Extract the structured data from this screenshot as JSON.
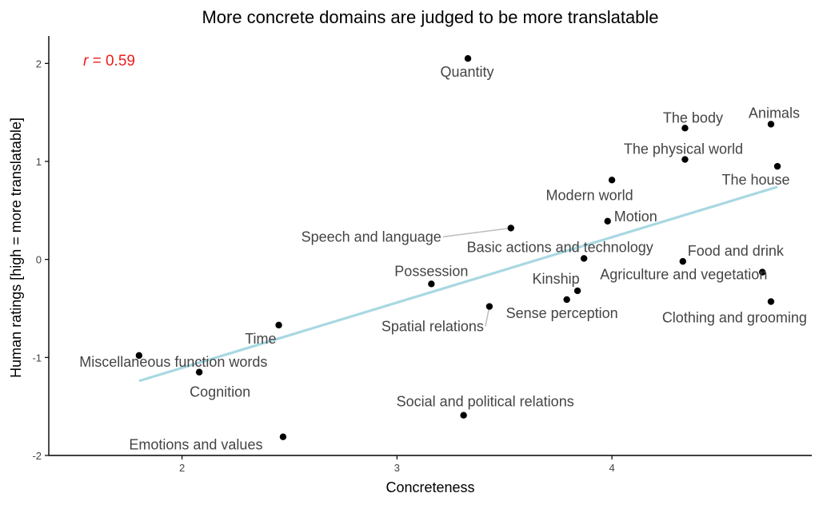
{
  "chart_data": {
    "type": "scatter",
    "title": "More concrete domains are judged to be more translatable",
    "xlabel": "Concreteness",
    "ylabel": "Human ratings [high = more translatable]",
    "xlim": [
      1.38,
      4.93
    ],
    "ylim": [
      -2.0,
      2.28
    ],
    "x_ticks": [
      2,
      3,
      4
    ],
    "y_ticks": [
      -2,
      -1,
      0,
      1,
      2
    ],
    "x_tick_labels": [
      "2",
      "3",
      "4"
    ],
    "y_tick_labels": [
      "-2",
      "-1",
      "0",
      "1",
      "2"
    ],
    "grid": false,
    "legend": "none",
    "annotation": {
      "prefix": "r",
      "text": " = 0.59",
      "color": "#ee1c1c"
    },
    "trend_line": {
      "color": "#a8d8e2",
      "x": [
        1.8,
        4.77
      ],
      "y": [
        -1.24,
        0.74
      ]
    },
    "point_color": "#000000",
    "points": [
      {
        "label": "Quantity",
        "x": 3.33,
        "y": 2.05
      },
      {
        "label": "The body",
        "x": 4.34,
        "y": 1.34
      },
      {
        "label": "Animals",
        "x": 4.74,
        "y": 1.38
      },
      {
        "label": "The physical world",
        "x": 4.34,
        "y": 1.02
      },
      {
        "label": "The house",
        "x": 4.77,
        "y": 0.95
      },
      {
        "label": "Modern world",
        "x": 4.0,
        "y": 0.81
      },
      {
        "label": "Motion",
        "x": 3.98,
        "y": 0.39
      },
      {
        "label": "Speech and language",
        "x": 3.53,
        "y": 0.32
      },
      {
        "label": "Basic actions and technology",
        "x": 3.87,
        "y": 0.01
      },
      {
        "label": "Food and drink",
        "x": 4.33,
        "y": -0.02
      },
      {
        "label": "Agriculture and vegetation",
        "x": 4.7,
        "y": -0.13
      },
      {
        "label": "Possession",
        "x": 3.16,
        "y": -0.25
      },
      {
        "label": "Kinship",
        "x": 3.84,
        "y": -0.32
      },
      {
        "label": "Clothing and grooming",
        "x": 4.74,
        "y": -0.43
      },
      {
        "label": "Sense perception",
        "x": 3.79,
        "y": -0.41
      },
      {
        "label": "Spatial relations",
        "x": 3.43,
        "y": -0.48
      },
      {
        "label": "Time",
        "x": 2.45,
        "y": -0.67
      },
      {
        "label": "Miscellaneous function words",
        "x": 1.8,
        "y": -0.98
      },
      {
        "label": "Cognition",
        "x": 2.08,
        "y": -1.15
      },
      {
        "label": "Social and political relations",
        "x": 3.31,
        "y": -1.59
      },
      {
        "label": "Emotions and values",
        "x": 2.47,
        "y": -1.81
      }
    ]
  }
}
